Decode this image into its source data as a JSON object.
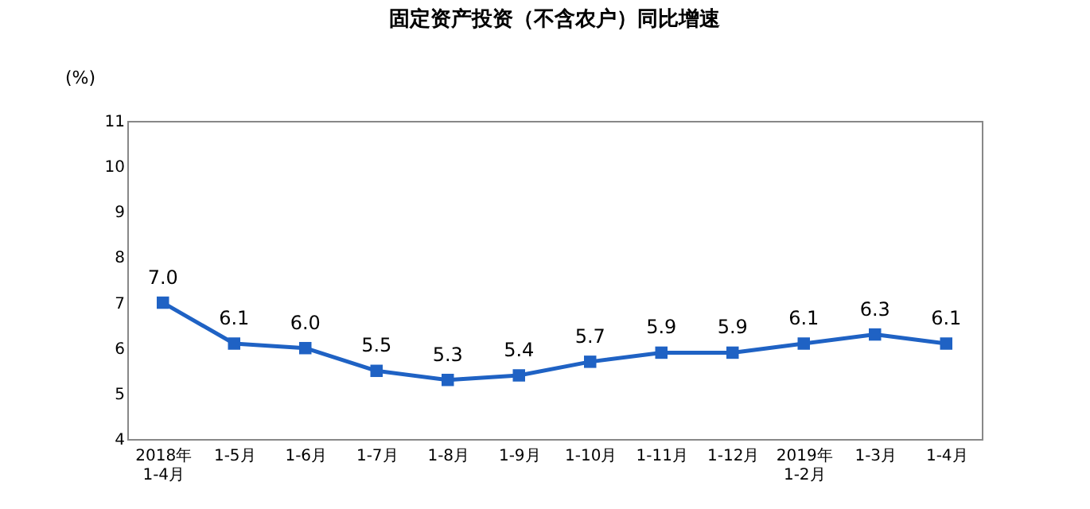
{
  "chart_data": {
    "type": "line",
    "title": "固定资产投资（不含农户）同比增速",
    "ylabel": "(%)",
    "categories": [
      "2018年\n1-4月",
      "1-5月",
      "1-6月",
      "1-7月",
      "1-8月",
      "1-9月",
      "1-10月",
      "1-11月",
      "1-12月",
      "2019年\n1-2月",
      "1-3月",
      "1-4月"
    ],
    "series": [
      {
        "color": "#1f62c4",
        "values": [
          7.0,
          6.1,
          6.0,
          5.5,
          5.3,
          5.4,
          5.7,
          5.9,
          5.9,
          6.1,
          6.3,
          6.1
        ],
        "value_labels": [
          "7.0",
          "6.1",
          "6.0",
          "5.5",
          "5.3",
          "5.4",
          "5.7",
          "5.9",
          "5.9",
          "6.1",
          "6.3",
          "6.1"
        ]
      }
    ],
    "ylim": [
      4,
      11
    ],
    "yticks": [
      4,
      5,
      6,
      7,
      8,
      9,
      10,
      11
    ],
    "grid": false,
    "legend": false,
    "marker": "square",
    "line_style": "solid"
  }
}
